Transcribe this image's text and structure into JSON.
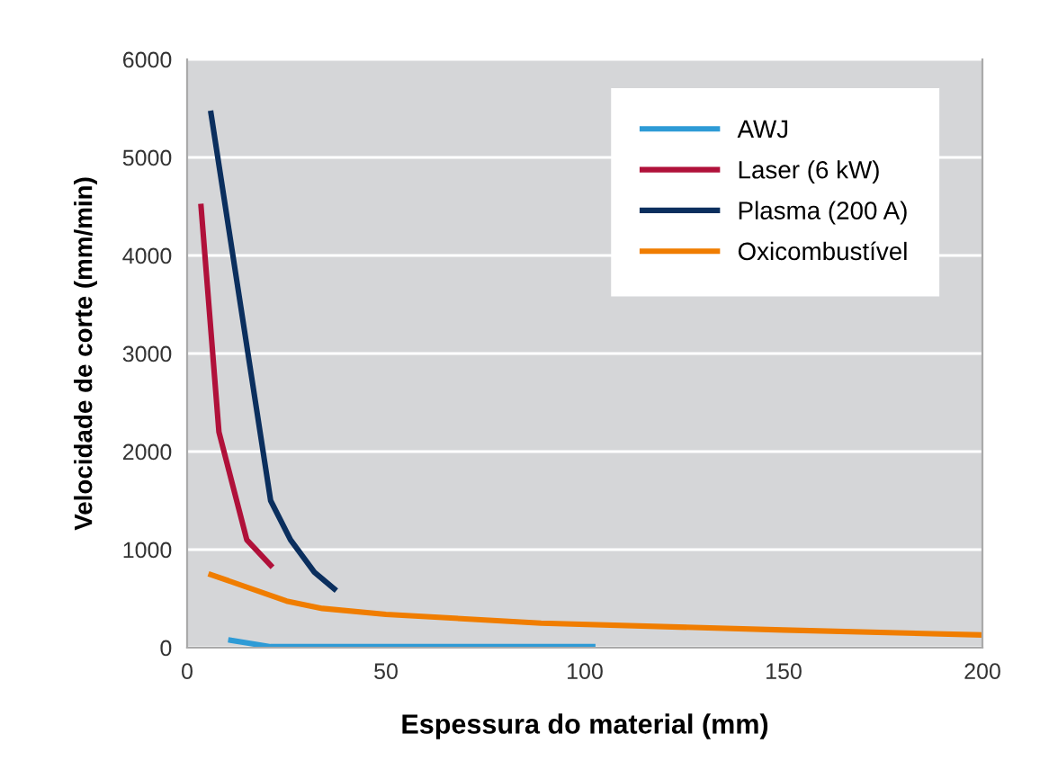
{
  "chart_data": {
    "type": "line",
    "xlabel": "Espessura do material (mm)",
    "ylabel": "Velocidade de corte (mm/min)",
    "xlim": [
      0,
      200
    ],
    "xticks": [
      0,
      50,
      100,
      150,
      200
    ],
    "ylim": [
      0,
      6000
    ],
    "yticks": [
      0,
      1000,
      2000,
      3000,
      4000,
      5000,
      6000
    ],
    "grid": "y",
    "legend": "top right",
    "series": [
      {
        "name": "AWJ",
        "color": "#2e9bd6",
        "x": [
          11,
          21,
          102
        ],
        "values": [
          75,
          10,
          10
        ]
      },
      {
        "name": "Laser (6 kW)",
        "color": "#b0113a",
        "x": [
          3.5,
          8,
          15,
          21
        ],
        "values": [
          4500,
          2200,
          1100,
          840
        ]
      },
      {
        "name": "Plasma (200 A)",
        "color": "#0b2f5e",
        "x": [
          6,
          21,
          26,
          32,
          37
        ],
        "values": [
          5450,
          1500,
          1100,
          770,
          600
        ]
      },
      {
        "name": "Oxicombustível",
        "color": "#f07d00",
        "x": [
          6,
          25,
          34,
          50,
          89,
          150,
          200
        ],
        "values": [
          745,
          475,
          400,
          340,
          250,
          180,
          130
        ]
      }
    ]
  }
}
